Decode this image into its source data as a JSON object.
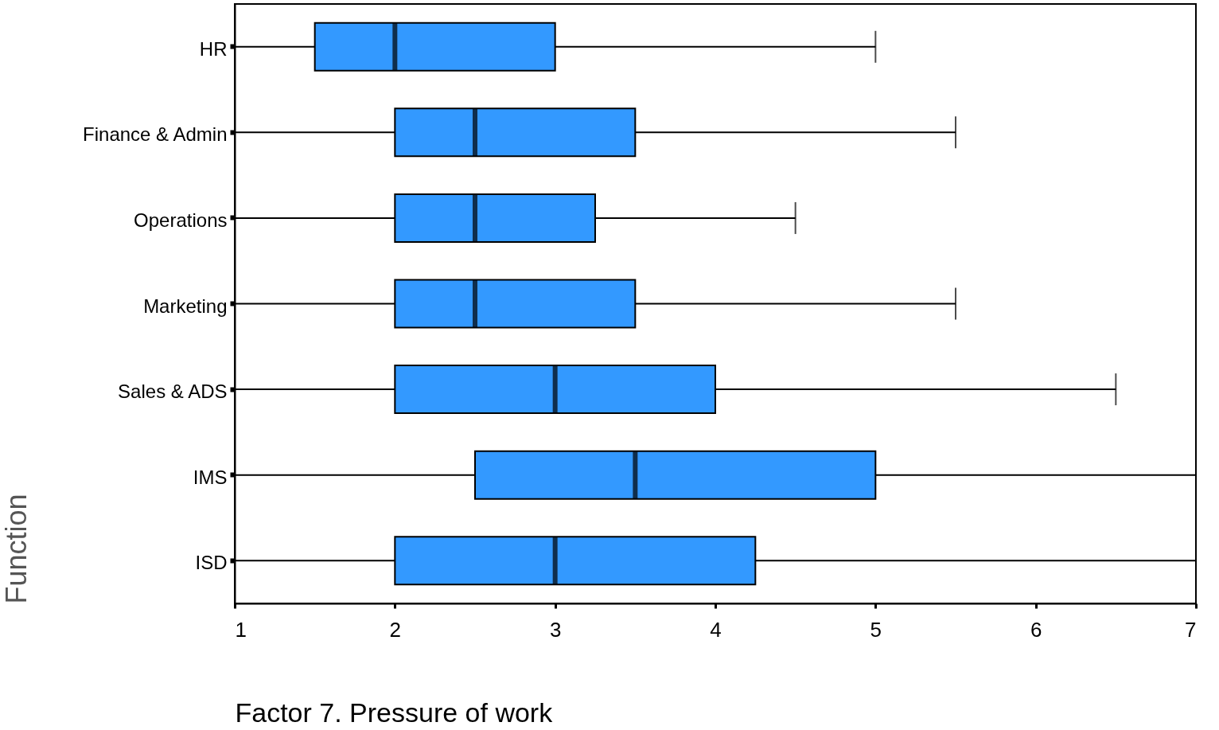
{
  "chart_data": {
    "type": "box",
    "orientation": "horizontal",
    "xlabel": "Factor 7. Pressure of work",
    "ylabel": "Function",
    "color": "#3399ff",
    "categories": [
      "HR",
      "Finance & Admin",
      "Operations",
      "Marketing",
      "Sales & ADS",
      "IMS",
      "ISD"
    ],
    "boxes": [
      {
        "low": 1,
        "q1": 1.5,
        "median": 2,
        "q3": 3,
        "high": 5
      },
      {
        "low": 1,
        "q1": 2,
        "median": 2.5,
        "q3": 3.5,
        "high": 5.5
      },
      {
        "low": 1,
        "q1": 2,
        "median": 2.5,
        "q3": 3.25,
        "high": 4.5
      },
      {
        "low": 1,
        "q1": 2,
        "median": 2.5,
        "q3": 3.5,
        "high": 5.5
      },
      {
        "low": 1,
        "q1": 2,
        "median": 3,
        "q3": 4,
        "high": 6.5
      },
      {
        "low": 1,
        "q1": 2.5,
        "median": 3.5,
        "q3": 5,
        "high": 7
      },
      {
        "low": 1,
        "q1": 2,
        "median": 3,
        "q3": 4.25,
        "high": 7
      }
    ],
    "xlim": [
      1,
      7
    ],
    "xticks": [
      1,
      2,
      3,
      4,
      5,
      6,
      7
    ]
  }
}
